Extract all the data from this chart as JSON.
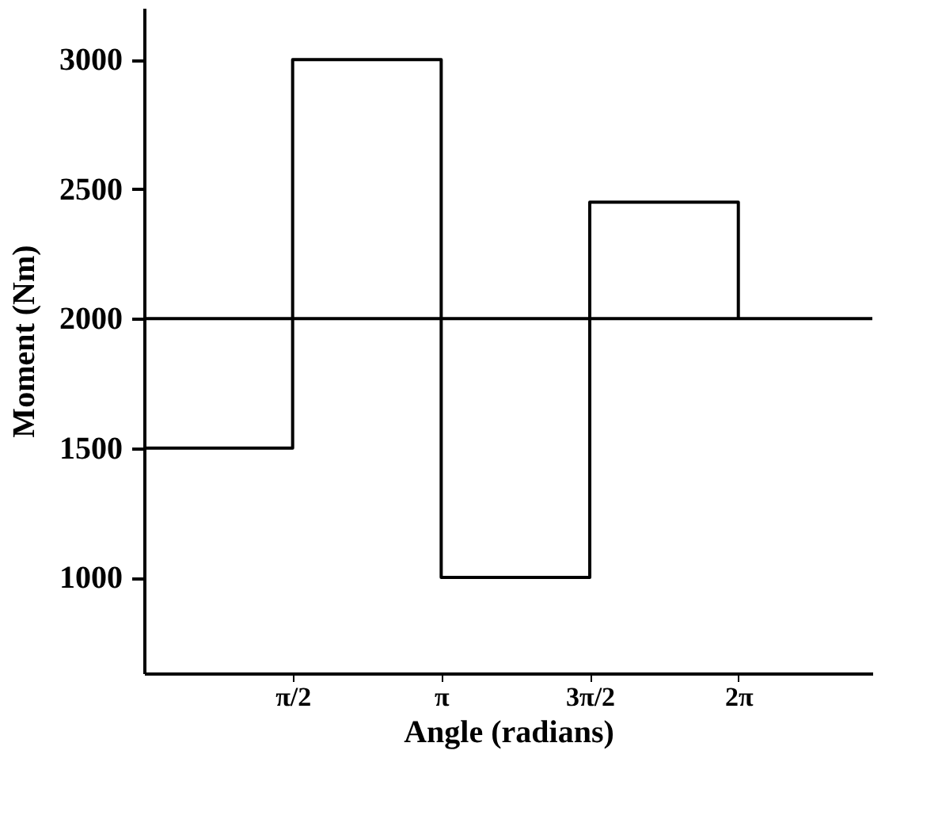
{
  "chart_data": {
    "type": "step",
    "xlabel": "Angle (radians)",
    "ylabel": "Moment (Nm)",
    "x": [
      0,
      1.5708,
      3.1416,
      4.7124,
      6.2832
    ],
    "values": [
      1500,
      3000,
      1000,
      2450,
      2000
    ],
    "color": "#000000",
    "xlim": [
      0,
      7.7
    ],
    "ylim": [
      630,
      3200
    ],
    "xticks": [
      {
        "value": 1.5708,
        "label": "π/2"
      },
      {
        "value": 3.1416,
        "label": "π"
      },
      {
        "value": 4.7124,
        "label": "3π/2"
      },
      {
        "value": 6.2832,
        "label": "2π"
      }
    ],
    "yticks": [
      1000,
      1500,
      2000,
      2500,
      3000
    ],
    "ref_lines": [
      {
        "axis": "y",
        "value": 2000,
        "color": "#000000"
      }
    ],
    "grid": false,
    "marker": "none",
    "line_style": "solid"
  }
}
